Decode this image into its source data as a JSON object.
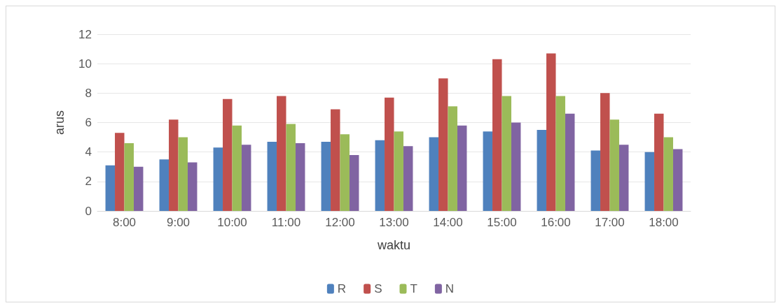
{
  "chart_data": {
    "type": "bar",
    "xlabel": "waktu",
    "ylabel": "arus",
    "categories": [
      "8:00",
      "9:00",
      "10:00",
      "11:00",
      "12:00",
      "13:00",
      "14:00",
      "15:00",
      "16:00",
      "17:00",
      "18:00"
    ],
    "series": [
      {
        "name": "R",
        "color": "#4f81bd",
        "values": [
          3.1,
          3.5,
          4.3,
          4.7,
          4.7,
          4.8,
          5.0,
          5.4,
          5.5,
          4.1,
          4.0
        ]
      },
      {
        "name": "S",
        "color": "#c0504d",
        "values": [
          5.3,
          6.2,
          7.6,
          7.8,
          6.9,
          7.7,
          9.0,
          10.3,
          10.7,
          8.0,
          6.6
        ]
      },
      {
        "name": "T",
        "color": "#9bbb59",
        "values": [
          4.6,
          5.0,
          5.8,
          5.9,
          5.2,
          5.4,
          7.1,
          7.8,
          7.8,
          6.2,
          5.0
        ]
      },
      {
        "name": "N",
        "color": "#8064a2",
        "values": [
          3.0,
          3.3,
          4.5,
          4.6,
          3.8,
          4.4,
          5.8,
          6.0,
          6.6,
          4.5,
          4.2
        ]
      }
    ],
    "ylim": [
      0,
      12
    ],
    "yticks": [
      0,
      2,
      4,
      6,
      8,
      10,
      12
    ],
    "grid": "y",
    "legend": "bottom"
  }
}
